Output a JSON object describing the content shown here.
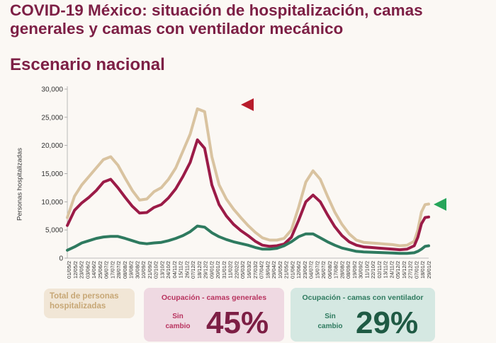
{
  "title": "COVID-19 México: situación de hospitalización, camas generales y camas con ventilador mecánico",
  "subtitle": "Escenario nacional",
  "colors": {
    "title": "#7d1f45",
    "total": "#d9c3a0",
    "general": "#9b1b47",
    "ventilator": "#2e7a5f",
    "marker_red": "#b71c2b",
    "marker_green": "#26a55a"
  },
  "legend": {
    "total_label": "Total de personas hospitalizadas",
    "general_label": "Ocupación - camas generales",
    "general_note": "Sin cambio",
    "general_value": "45%",
    "ventilator_label": "Ocupación - camas con ventilador",
    "ventilator_note": "Sin cambio",
    "ventilator_value": "29%"
  },
  "chart_data": {
    "type": "line",
    "ylabel": "Personas hospitalizadas",
    "ylim": [
      0,
      30000
    ],
    "yticks": [
      "0",
      "5,000",
      "10,000",
      "15,000",
      "20,000",
      "25,000",
      "30,000"
    ],
    "x_tick_labels": [
      "01/05/2",
      "12/05/2",
      "23/05/2",
      "03/06/2",
      "14/06/2",
      "25/06/2",
      "06/07/2",
      "17/07/2",
      "28/07/2",
      "08/08/2",
      "19/08/2",
      "30/08/2",
      "10/09/2",
      "21/09/2",
      "02/10/2",
      "13/10/2",
      "24/10/2",
      "04/11/2",
      "15/11/2",
      "26/11/2",
      "07/12/2",
      "18/12/2",
      "29/12/2",
      "09/01/2",
      "20/01/2",
      "31/01/2",
      "11/02/2",
      "22/02/2",
      "05/03/2",
      "16/03/2",
      "27/03/2",
      "07/04/2",
      "18/04/2",
      "29/04/2",
      "10/05/2",
      "21/05/2",
      "01/06/2",
      "12/06/2",
      "23/06/2",
      "04/07/2",
      "15/07/2",
      "26/07/2",
      "06/08/2",
      "17/08/2",
      "28/08/2",
      "08/09/2",
      "19/09/2",
      "30/09/2",
      "11/10/2",
      "22/10/2",
      "02/11/2",
      "13/11/2",
      "24/11/2",
      "05/12/2",
      "16/12/2",
      "27/12/2",
      "07/01/2",
      "18/01/2",
      "29/01/2"
    ],
    "x_index_range": [
      0,
      100
    ],
    "series": [
      {
        "name": "Total de personas hospitalizadas",
        "x": [
          0,
          2,
          4,
          6,
          8,
          10,
          12,
          14,
          16,
          18,
          20,
          22,
          24,
          26,
          28,
          30,
          32,
          34,
          36,
          38,
          40,
          42,
          44,
          46,
          48,
          50,
          52,
          54,
          56,
          58,
          60,
          62,
          64,
          66,
          68,
          70,
          72,
          74,
          76,
          78,
          80,
          82,
          84,
          86,
          88,
          90,
          92,
          94,
          96,
          97,
          98,
          99,
          100
        ],
        "values": [
          7200,
          11000,
          13000,
          14500,
          16000,
          17500,
          18000,
          16500,
          14200,
          12000,
          10300,
          10500,
          11800,
          12500,
          14000,
          16000,
          19000,
          22000,
          26500,
          26000,
          18000,
          13000,
          10500,
          8700,
          7200,
          5800,
          4600,
          3600,
          3200,
          3200,
          3500,
          5000,
          9000,
          13500,
          15500,
          14000,
          11000,
          8200,
          6000,
          4300,
          3200,
          2800,
          2700,
          2600,
          2500,
          2400,
          2200,
          2300,
          3000,
          5000,
          8200,
          9500,
          9600
        ]
      },
      {
        "name": "Ocupación - camas generales",
        "x": [
          0,
          2,
          4,
          6,
          8,
          10,
          12,
          14,
          16,
          18,
          20,
          22,
          24,
          26,
          28,
          30,
          32,
          34,
          36,
          38,
          40,
          42,
          44,
          46,
          48,
          50,
          52,
          54,
          56,
          58,
          60,
          62,
          64,
          66,
          68,
          70,
          72,
          74,
          76,
          78,
          80,
          82,
          84,
          86,
          88,
          90,
          92,
          94,
          96,
          97,
          98,
          99,
          100
        ],
        "values": [
          5800,
          8500,
          9800,
          10800,
          12000,
          13500,
          14000,
          12500,
          10800,
          9200,
          8000,
          8100,
          9000,
          9500,
          10700,
          12300,
          14500,
          17000,
          21000,
          19500,
          13000,
          9500,
          7500,
          6000,
          4900,
          4000,
          3000,
          2300,
          2100,
          2200,
          2500,
          3700,
          6700,
          10000,
          11200,
          10000,
          7700,
          5600,
          4000,
          2900,
          2300,
          2000,
          1900,
          1800,
          1700,
          1600,
          1500,
          1600,
          2200,
          3700,
          6100,
          7200,
          7300
        ]
      },
      {
        "name": "Ocupación - camas con ventilador",
        "x": [
          0,
          2,
          4,
          6,
          8,
          10,
          12,
          14,
          16,
          18,
          20,
          22,
          24,
          26,
          28,
          30,
          32,
          34,
          36,
          38,
          40,
          42,
          44,
          46,
          48,
          50,
          52,
          54,
          56,
          58,
          60,
          62,
          64,
          66,
          68,
          70,
          72,
          74,
          76,
          78,
          80,
          82,
          84,
          86,
          88,
          90,
          92,
          94,
          96,
          97,
          98,
          99,
          100
        ],
        "values": [
          1400,
          2000,
          2700,
          3100,
          3500,
          3750,
          3850,
          3850,
          3500,
          3100,
          2700,
          2550,
          2700,
          2800,
          3100,
          3500,
          4000,
          4700,
          5700,
          5500,
          4500,
          3800,
          3300,
          2900,
          2600,
          2300,
          1900,
          1600,
          1600,
          1750,
          2200,
          2900,
          3800,
          4300,
          4300,
          3600,
          2900,
          2300,
          1800,
          1500,
          1200,
          1100,
          1050,
          1000,
          950,
          900,
          850,
          850,
          950,
          1200,
          1600,
          2100,
          2200
        ]
      }
    ]
  }
}
